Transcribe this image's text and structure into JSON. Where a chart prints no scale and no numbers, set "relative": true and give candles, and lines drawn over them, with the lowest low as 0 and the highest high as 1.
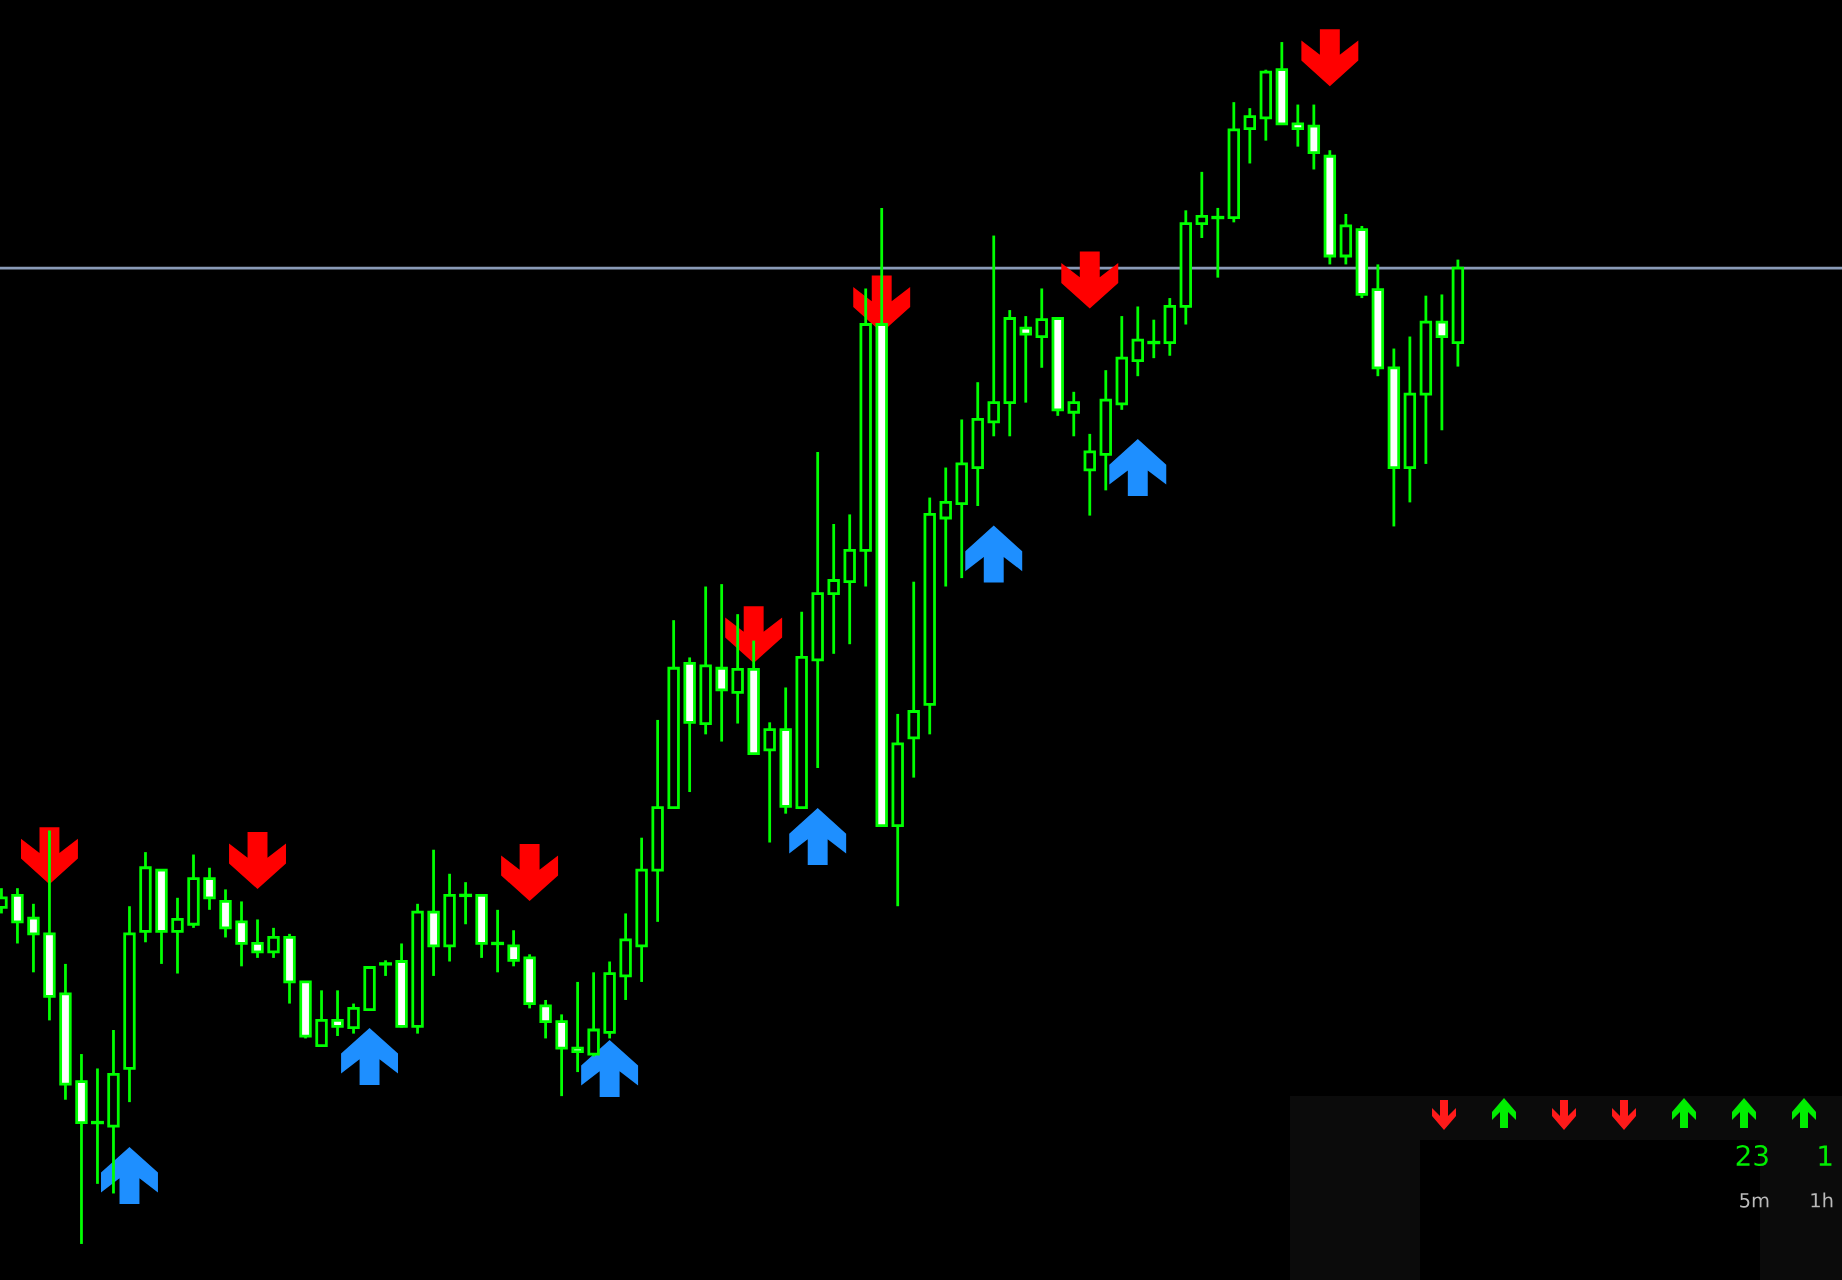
{
  "chart_data": {
    "type": "candlestick",
    "relative": true,
    "color": "#00ff00",
    "categories": [
      null,
      null,
      null,
      null,
      null,
      null,
      null,
      null,
      null,
      null,
      null,
      null,
      null,
      null,
      null,
      null,
      null,
      null,
      null,
      null,
      null,
      null,
      null,
      null,
      null,
      null,
      null,
      null,
      null,
      null,
      null,
      null,
      null,
      null,
      null,
      null,
      null,
      null,
      null,
      null,
      null,
      null,
      null,
      null,
      null,
      null,
      null,
      null,
      null,
      null,
      null,
      null,
      null,
      null,
      null,
      null,
      null,
      null,
      null,
      null,
      null,
      null,
      null,
      null,
      null,
      null,
      null,
      null,
      null,
      null,
      null,
      null,
      null,
      null,
      null,
      null,
      null,
      null,
      null,
      null,
      null,
      null,
      null,
      null,
      null,
      null,
      null,
      null,
      null,
      null,
      null,
      null
    ],
    "ohlc": [
      [
        0.28,
        0.296,
        0.275,
        0.288
      ],
      [
        0.29,
        0.296,
        0.25,
        0.268
      ],
      [
        0.271,
        0.283,
        0.226,
        0.258
      ],
      [
        0.258,
        0.344,
        0.186,
        0.206
      ],
      [
        0.208,
        0.233,
        0.12,
        0.133
      ],
      [
        0.135,
        0.158,
        0,
        0.101
      ],
      [
        0.101,
        0.146,
        0.05,
        0.101
      ],
      [
        0.098,
        0.178,
        0.042,
        0.141
      ],
      [
        0.146,
        0.281,
        0.118,
        0.258
      ],
      [
        0.26,
        0.326,
        0.251,
        0.313
      ],
      [
        0.311,
        0.311,
        0.233,
        0.26
      ],
      [
        0.26,
        0.288,
        0.225,
        0.27
      ],
      [
        0.266,
        0.324,
        0.263,
        0.304
      ],
      [
        0.304,
        0.313,
        0.278,
        0.288
      ],
      [
        0.285,
        0.295,
        0.255,
        0.263
      ],
      [
        0.268,
        0.285,
        0.231,
        0.25
      ],
      [
        0.25,
        0.27,
        0.238,
        0.243
      ],
      [
        0.243,
        0.263,
        0.238,
        0.255
      ],
      [
        0.255,
        0.258,
        0.2,
        0.218
      ],
      [
        0.218,
        0.218,
        0.171,
        0.173
      ],
      [
        0.165,
        0.211,
        0.165,
        0.186
      ],
      [
        0.186,
        0.211,
        0.173,
        0.181
      ],
      [
        0.18,
        0.2,
        0.175,
        0.196
      ],
      [
        0.195,
        0.23,
        0.195,
        0.23
      ],
      [
        0.233,
        0.236,
        0.223,
        0.233
      ],
      [
        0.235,
        0.25,
        0.18,
        0.181
      ],
      [
        0.181,
        0.283,
        0.175,
        0.276
      ],
      [
        0.276,
        0.328,
        0.223,
        0.248
      ],
      [
        0.248,
        0.308,
        0.235,
        0.29
      ],
      [
        0.29,
        0.301,
        0.266,
        0.29
      ],
      [
        0.29,
        0.29,
        0.238,
        0.25
      ],
      [
        0.25,
        0.278,
        0.226,
        0.25
      ],
      [
        0.248,
        0.261,
        0.231,
        0.236
      ],
      [
        0.238,
        0.241,
        0.196,
        0.2
      ],
      [
        0.198,
        0.203,
        0.171,
        0.185
      ],
      [
        0.185,
        0.191,
        0.123,
        0.163
      ],
      [
        0.163,
        0.218,
        0.143,
        0.16
      ],
      [
        0.158,
        0.226,
        0.156,
        0.178
      ],
      [
        0.176,
        0.235,
        0.171,
        0.225
      ],
      [
        0.223,
        0.275,
        0.203,
        0.253
      ],
      [
        0.248,
        0.338,
        0.218,
        0.311
      ],
      [
        0.311,
        0.436,
        0.268,
        0.363
      ],
      [
        0.363,
        0.519,
        0.363,
        0.479
      ],
      [
        0.483,
        0.488,
        0.376,
        0.434
      ],
      [
        0.433,
        0.547,
        0.424,
        0.481
      ],
      [
        0.479,
        0.549,
        0.418,
        0.461
      ],
      [
        0.459,
        0.524,
        0.433,
        0.478
      ],
      [
        0.478,
        0.502,
        0.408,
        0.408
      ],
      [
        0.411,
        0.434,
        0.334,
        0.428
      ],
      [
        0.428,
        0.463,
        0.358,
        0.364
      ],
      [
        0.363,
        0.526,
        0.363,
        0.488
      ],
      [
        0.486,
        0.659,
        0.396,
        0.541
      ],
      [
        0.541,
        0.599,
        0.491,
        0.552
      ],
      [
        0.551,
        0.607,
        0.499,
        0.577
      ],
      [
        0.577,
        0.795,
        0.547,
        0.765
      ],
      [
        0.765,
        0.862,
        0.348,
        0.348
      ],
      [
        0.348,
        0.441,
        0.281,
        0.416
      ],
      [
        0.421,
        0.551,
        0.388,
        0.443
      ],
      [
        0.449,
        0.621,
        0.424,
        0.607
      ],
      [
        0.604,
        0.646,
        0.547,
        0.617
      ],
      [
        0.616,
        0.686,
        0.554,
        0.649
      ],
      [
        0.646,
        0.717,
        0.614,
        0.686
      ],
      [
        0.684,
        0.839,
        0.672,
        0.7
      ],
      [
        0.7,
        0.777,
        0.672,
        0.77
      ],
      [
        0.762,
        0.772,
        0.7,
        0.757
      ],
      [
        0.755,
        0.795,
        0.729,
        0.769
      ],
      [
        0.77,
        0.77,
        0.689,
        0.694
      ],
      [
        0.692,
        0.709,
        0.672,
        0.7
      ],
      [
        0.644,
        0.674,
        0.606,
        0.659
      ],
      [
        0.657,
        0.727,
        0.627,
        0.702
      ],
      [
        0.699,
        0.772,
        0.694,
        0.737
      ],
      [
        0.735,
        0.78,
        0.722,
        0.752
      ],
      [
        0.75,
        0.769,
        0.737,
        0.75
      ],
      [
        0.75,
        0.787,
        0.739,
        0.78
      ],
      [
        0.78,
        0.86,
        0.765,
        0.849
      ],
      [
        0.849,
        0.892,
        0.837,
        0.855
      ],
      [
        0.854,
        0.862,
        0.804,
        0.854
      ],
      [
        0.854,
        0.95,
        0.85,
        0.927
      ],
      [
        0.928,
        0.945,
        0.899,
        0.938
      ],
      [
        0.937,
        0.977,
        0.918,
        0.975
      ],
      [
        0.977,
        1,
        0.932,
        0.932
      ],
      [
        0.932,
        0.948,
        0.913,
        0.928
      ],
      [
        0.93,
        0.948,
        0.894,
        0.908
      ],
      [
        0.905,
        0.91,
        0.815,
        0.822
      ],
      [
        0.822,
        0.857,
        0.815,
        0.847
      ],
      [
        0.844,
        0.847,
        0.787,
        0.79
      ],
      [
        0.794,
        0.815,
        0.722,
        0.729
      ],
      [
        0.729,
        0.745,
        0.597,
        0.646
      ],
      [
        0.646,
        0.755,
        0.617,
        0.707
      ],
      [
        0.707,
        0.789,
        0.649,
        0.767
      ],
      [
        0.767,
        0.79,
        0.677,
        0.755
      ],
      [
        0.75,
        0.819,
        0.73,
        0.812
      ]
    ],
    "series": [
      {
        "type": "scatter",
        "color": "#ff0000",
        "values": [
          null,
          null,
          null,
          0.323,
          null,
          null,
          null,
          null,
          null,
          null,
          null,
          null,
          null,
          null,
          null,
          null,
          0.319,
          null,
          null,
          null,
          null,
          null,
          null,
          null,
          null,
          null,
          null,
          null,
          null,
          null,
          null,
          null,
          null,
          0.309,
          null,
          null,
          null,
          null,
          null,
          null,
          null,
          null,
          null,
          null,
          null,
          null,
          null,
          0.507,
          null,
          null,
          null,
          null,
          null,
          null,
          null,
          0.782,
          null,
          null,
          null,
          null,
          null,
          null,
          null,
          null,
          null,
          null,
          null,
          null,
          0.802,
          null,
          null,
          null,
          null,
          null,
          null,
          null,
          null,
          null,
          null,
          null,
          null,
          null,
          null,
          0.987,
          null,
          null,
          null,
          null,
          null,
          null,
          null,
          null
        ]
      },
      {
        "type": "scatter",
        "color": "#1e8fff",
        "values": [
          null,
          null,
          null,
          null,
          null,
          null,
          null,
          null,
          0.057,
          null,
          null,
          null,
          null,
          null,
          null,
          null,
          null,
          null,
          null,
          null,
          null,
          null,
          null,
          0.156,
          null,
          null,
          null,
          null,
          null,
          null,
          null,
          null,
          null,
          null,
          null,
          null,
          null,
          null,
          0.146,
          null,
          null,
          null,
          null,
          null,
          null,
          null,
          null,
          null,
          null,
          null,
          null,
          0.339,
          null,
          null,
          null,
          null,
          null,
          null,
          null,
          null,
          null,
          null,
          0.574,
          null,
          null,
          null,
          null,
          null,
          null,
          null,
          null,
          0.646,
          null,
          null,
          null,
          null,
          null,
          null,
          null,
          null,
          null,
          null,
          null,
          null,
          null,
          null,
          null,
          null,
          null,
          null,
          null,
          null
        ]
      }
    ],
    "ref_lines": [
      {
        "axis": "y",
        "value": 0.812,
        "color": "#8a9bb8"
      }
    ],
    "annotations": [
      "23",
      "1",
      "5m",
      "1h"
    ]
  }
}
